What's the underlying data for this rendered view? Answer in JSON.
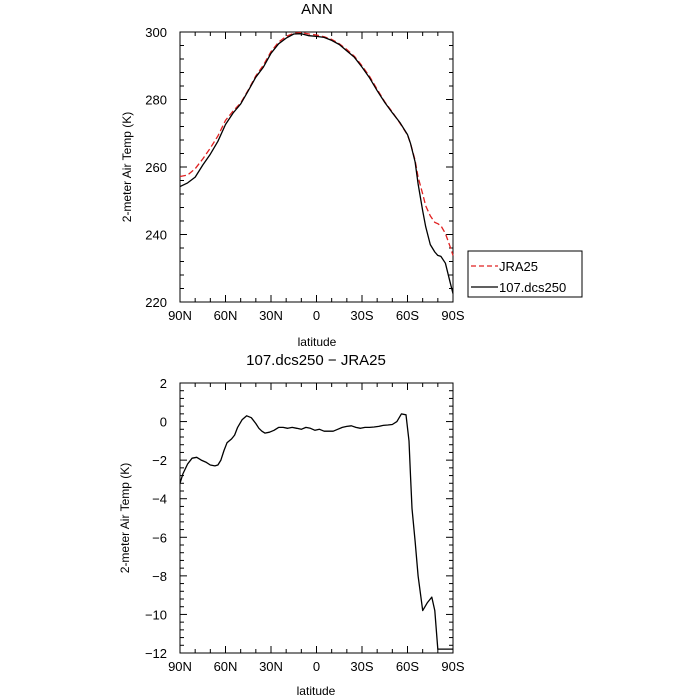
{
  "chart_data": [
    {
      "type": "line",
      "title": "ANN",
      "xlabel": "latitude",
      "ylabel": "2-meter Air Temp (K)",
      "xlim": [
        -90,
        90
      ],
      "ylim": [
        220,
        300
      ],
      "yticks": [
        220,
        240,
        260,
        280,
        300
      ],
      "xticks": [
        -90,
        -60,
        -30,
        0,
        30,
        60,
        90
      ],
      "xticklabels": [
        "90N",
        "60N",
        "30N",
        "0",
        "30S",
        "60S",
        "90S"
      ],
      "legend_position": "right",
      "series": [
        {
          "name": "JRA25",
          "color": "#e02020",
          "dash": true,
          "x": [
            -90,
            -85,
            -80,
            -75,
            -70,
            -65,
            -60,
            -55,
            -50,
            -45,
            -40,
            -35,
            -30,
            -25,
            -20,
            -15,
            -10,
            -5,
            0,
            5,
            10,
            15,
            20,
            25,
            30,
            35,
            40,
            45,
            50,
            55,
            60,
            62,
            65,
            67,
            70,
            72,
            75,
            78,
            80,
            82,
            85,
            88,
            90
          ],
          "y": [
            257.2,
            257.6,
            259.5,
            262.4,
            265.6,
            269.2,
            273.8,
            276.6,
            279.0,
            282.8,
            287.0,
            290.2,
            294.2,
            297.0,
            298.7,
            299.6,
            299.8,
            299.4,
            299.1,
            298.6,
            297.8,
            296.5,
            294.8,
            292.8,
            290.0,
            286.8,
            283.0,
            279.3,
            276.3,
            273.0,
            269.5,
            267.0,
            262.0,
            257.0,
            252.0,
            248.5,
            245.5,
            243.6,
            243.2,
            242.6,
            240.3,
            236.5,
            233.8
          ]
        },
        {
          "name": "107.dcs250",
          "color": "#000000",
          "dash": false,
          "x": [
            -90,
            -85,
            -80,
            -75,
            -70,
            -65,
            -60,
            -55,
            -50,
            -45,
            -40,
            -35,
            -30,
            -25,
            -20,
            -15,
            -10,
            -5,
            0,
            5,
            10,
            15,
            20,
            25,
            30,
            35,
            40,
            45,
            50,
            55,
            60,
            62,
            65,
            67,
            70,
            72,
            75,
            78,
            80,
            82,
            85,
            88,
            90
          ],
          "y": [
            254.2,
            255.3,
            257.0,
            260.6,
            263.8,
            267.6,
            272.6,
            276.0,
            278.7,
            282.6,
            286.6,
            289.6,
            293.7,
            296.5,
            298.2,
            299.4,
            299.5,
            298.9,
            298.7,
            298.4,
            297.5,
            296.3,
            294.4,
            292.5,
            289.6,
            286.4,
            282.6,
            279.1,
            276.1,
            273.2,
            269.6,
            267.0,
            261.5,
            255.0,
            247.0,
            242.3,
            237.0,
            234.8,
            233.8,
            233.5,
            231.5,
            226.0,
            222.5
          ]
        }
      ]
    },
    {
      "type": "line",
      "title": "107.dcs250 − JRA25",
      "xlabel": "latitude",
      "ylabel": "2-meter Air Temp (K)",
      "xlim": [
        -90,
        90
      ],
      "ylim": [
        -12,
        2
      ],
      "yticks": [
        -12,
        -10,
        -8,
        -6,
        -4,
        -2,
        0,
        2
      ],
      "xticks": [
        -90,
        -60,
        -30,
        0,
        30,
        60,
        90
      ],
      "xticklabels": [
        "90N",
        "60N",
        "30N",
        "0",
        "30S",
        "60S",
        "90S"
      ],
      "series": [
        {
          "color": "#000000",
          "x": [
            -90,
            -88,
            -85,
            -82,
            -79,
            -76,
            -73,
            -70,
            -67,
            -65,
            -63,
            -61,
            -59,
            -56,
            -54,
            -52,
            -49,
            -46,
            -43,
            -40,
            -38,
            -36,
            -34,
            -31,
            -28,
            -25,
            -22,
            -19,
            -16,
            -13,
            -10,
            -7,
            -4,
            -1,
            2,
            5,
            8,
            11,
            14,
            17,
            20,
            23,
            26,
            29,
            32,
            35,
            38,
            41,
            44,
            47,
            50,
            53,
            56,
            59,
            61,
            62,
            63,
            65,
            67,
            70,
            73,
            76,
            78,
            80,
            82,
            84,
            86,
            88,
            90
          ],
          "y": [
            -3.2,
            -2.7,
            -2.2,
            -1.9,
            -1.85,
            -2.0,
            -2.1,
            -2.25,
            -2.3,
            -2.25,
            -2.0,
            -1.5,
            -1.1,
            -0.9,
            -0.7,
            -0.3,
            0.1,
            0.3,
            0.2,
            -0.1,
            -0.35,
            -0.5,
            -0.6,
            -0.55,
            -0.45,
            -0.3,
            -0.3,
            -0.35,
            -0.3,
            -0.35,
            -0.4,
            -0.3,
            -0.35,
            -0.45,
            -0.4,
            -0.5,
            -0.5,
            -0.5,
            -0.4,
            -0.3,
            -0.25,
            -0.22,
            -0.3,
            -0.35,
            -0.3,
            -0.3,
            -0.28,
            -0.25,
            -0.2,
            -0.18,
            -0.15,
            0.0,
            0.4,
            0.35,
            -1.0,
            -2.8,
            -4.5,
            -6.2,
            -8.0,
            -9.8,
            -9.4,
            -9.1,
            -9.8,
            -11.8,
            -11.8,
            -11.8,
            -11.8,
            -11.8,
            -11.8
          ]
        }
      ]
    }
  ]
}
